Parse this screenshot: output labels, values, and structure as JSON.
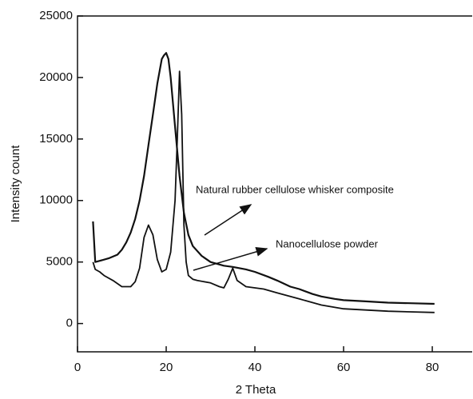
{
  "chart_data": {
    "type": "line",
    "xlabel": "2 Theta",
    "ylabel": "Intensity count",
    "series": [
      {
        "name": "Natural rubber cellulose whisker composite",
        "color": "#111111",
        "x": [
          3.5,
          4,
          5,
          7,
          9,
          10,
          11,
          12,
          13,
          14,
          15,
          16,
          17,
          18,
          19,
          19.5,
          20,
          20.5,
          21,
          22,
          23,
          24,
          25,
          26,
          28,
          30,
          33,
          35,
          38,
          40,
          43,
          45,
          48,
          50,
          53,
          55,
          58,
          60,
          65,
          70,
          75,
          80.5
        ],
        "values": [
          8300,
          5000,
          5100,
          5300,
          5600,
          6000,
          6600,
          7400,
          8500,
          10000,
          12000,
          14500,
          17000,
          19500,
          21500,
          21800,
          22000,
          21500,
          20000,
          16000,
          12000,
          9000,
          7200,
          6300,
          5500,
          5000,
          4700,
          4600,
          4400,
          4200,
          3800,
          3500,
          3000,
          2800,
          2400,
          2200,
          2000,
          1900,
          1800,
          1700,
          1650,
          1600
        ]
      },
      {
        "name": "Nanocellulose powder",
        "color": "#111111",
        "x": [
          3.5,
          4,
          5,
          6,
          8,
          10,
          12,
          13,
          14,
          15,
          16,
          17,
          18,
          19,
          20,
          21,
          22,
          22.5,
          23,
          23.5,
          24,
          24.5,
          25,
          26,
          27,
          30,
          32,
          33,
          34,
          35,
          36,
          38,
          40,
          42,
          45,
          48,
          50,
          55,
          60,
          65,
          70,
          75,
          80.5
        ],
        "values": [
          5000,
          4400,
          4200,
          3900,
          3500,
          3000,
          3000,
          3400,
          4500,
          7000,
          8000,
          7200,
          5200,
          4200,
          4400,
          5800,
          10000,
          15000,
          20500,
          17000,
          8000,
          5000,
          3900,
          3600,
          3500,
          3300,
          3000,
          2900,
          3600,
          4500,
          3500,
          3000,
          2900,
          2800,
          2500,
          2200,
          2000,
          1500,
          1200,
          1100,
          1000,
          950,
          900
        ]
      }
    ],
    "annotations": [
      "Natural rubber cellulose whisker composite",
      "Nanocellulose powder"
    ],
    "xlim": [
      0,
      89
    ],
    "xticks": [
      0,
      20,
      40,
      60,
      80
    ],
    "ylim": [
      -2300,
      25000
    ],
    "yticks": [
      0,
      5000,
      10000,
      15000,
      20000,
      25000
    ],
    "grid": false
  }
}
